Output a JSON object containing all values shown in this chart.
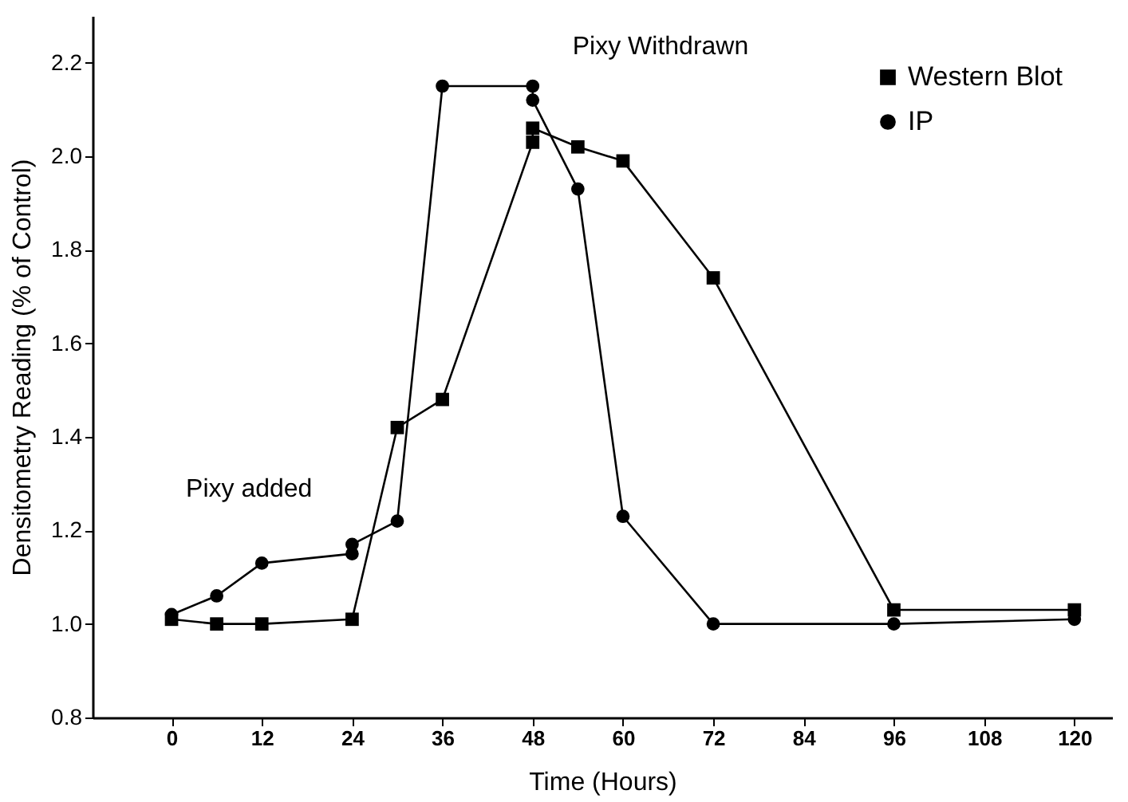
{
  "chart_data": {
    "type": "line",
    "xlabel": "Time (Hours)",
    "ylabel": "Densitometry Reading (% of Control)",
    "xlim": [
      -10.5,
      125
    ],
    "xticks": [
      0,
      12,
      24,
      36,
      48,
      60,
      72,
      84,
      96,
      108,
      120
    ],
    "ylim": [
      0.8,
      2.3
    ],
    "yticks": [
      {
        "value": 0.8,
        "label": "0.8"
      },
      {
        "value": 1.0,
        "label": "1.0"
      },
      {
        "value": 1.2,
        "label": "1.2"
      },
      {
        "value": 1.4,
        "label": "1.4"
      },
      {
        "value": 1.6,
        "label": "1.6"
      },
      {
        "value": 1.8,
        "label": "1.8"
      },
      {
        "value": 2.0,
        "label": "2.0"
      },
      {
        "value": 2.2,
        "label": "2.2"
      }
    ],
    "grid": false,
    "legend": "top right",
    "line_style": "solid",
    "series": [
      {
        "name": "Western Blot",
        "color": "#000000",
        "marker": "square",
        "x": [
          0,
          6,
          12,
          24,
          30,
          36,
          48,
          48,
          54,
          60,
          72,
          96,
          120
        ],
        "values": [
          1.01,
          1.0,
          1.0,
          1.01,
          1.42,
          1.48,
          2.03,
          2.06,
          2.02,
          1.99,
          1.74,
          1.03,
          1.03
        ]
      },
      {
        "name": "IP",
        "color": "#000000",
        "marker": "circle",
        "x": [
          0,
          6,
          12,
          24,
          24,
          30,
          36,
          48,
          48,
          54,
          60,
          72,
          96,
          120
        ],
        "values": [
          1.02,
          1.06,
          1.13,
          1.15,
          1.17,
          1.22,
          2.15,
          2.15,
          2.12,
          1.93,
          1.23,
          1.0,
          1.0,
          1.01
        ]
      }
    ],
    "annotations": [
      {
        "text": "Pixy added",
        "x": 24,
        "y": 1.17
      },
      {
        "text": "Pixy Withdrawn",
        "x": 48,
        "y": 2.15
      }
    ]
  }
}
